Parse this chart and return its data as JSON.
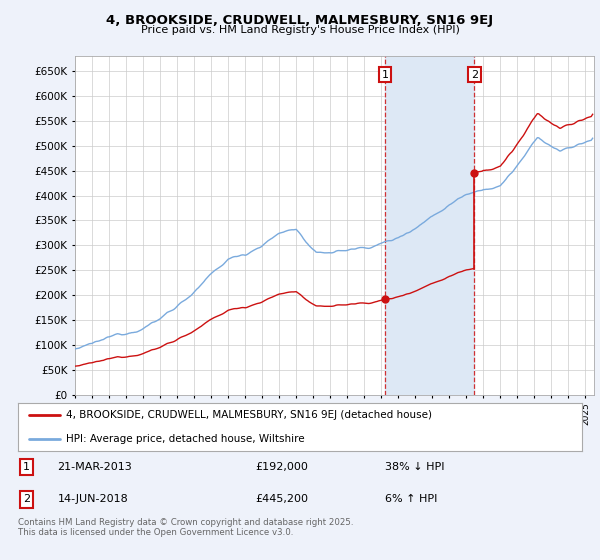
{
  "title": "4, BROOKSIDE, CRUDWELL, MALMESBURY, SN16 9EJ",
  "subtitle": "Price paid vs. HM Land Registry's House Price Index (HPI)",
  "ylim": [
    0,
    680000
  ],
  "yticks": [
    0,
    50000,
    100000,
    150000,
    200000,
    250000,
    300000,
    350000,
    400000,
    450000,
    500000,
    550000,
    600000,
    650000
  ],
  "xlim_start": 1995.0,
  "xlim_end": 2025.5,
  "hpi_color": "#7aaadd",
  "price_color": "#cc1111",
  "sale1_x": 2013.22,
  "sale1_price": 192000,
  "sale1_label": "1",
  "sale2_x": 2018.46,
  "sale2_price": 445200,
  "sale2_label": "2",
  "vline_color": "#cc1111",
  "annotation_box_color": "#cc1111",
  "legend_label_price": "4, BROOKSIDE, CRUDWELL, MALMESBURY, SN16 9EJ (detached house)",
  "legend_label_hpi": "HPI: Average price, detached house, Wiltshire",
  "table_row1": [
    "1",
    "21-MAR-2013",
    "£192,000",
    "38% ↓ HPI"
  ],
  "table_row2": [
    "2",
    "14-JUN-2018",
    "£445,200",
    "6% ↑ HPI"
  ],
  "footnote": "Contains HM Land Registry data © Crown copyright and database right 2025.\nThis data is licensed under the Open Government Licence v3.0.",
  "background_color": "#eef2fa",
  "plot_bg_color": "#ffffff",
  "grid_color": "#cccccc",
  "span_color": "#dde8f5"
}
